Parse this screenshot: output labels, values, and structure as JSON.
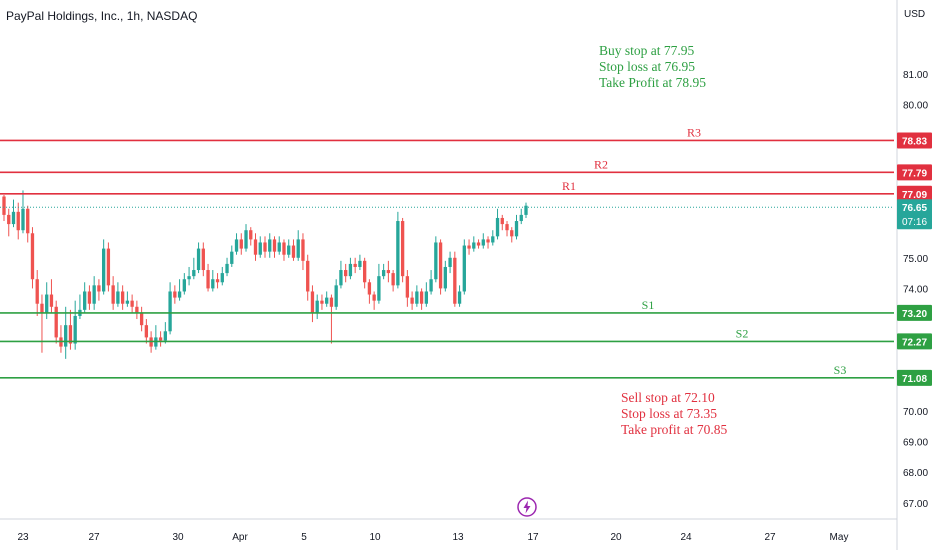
{
  "header": {
    "title": "PayPal Holdings, Inc., 1h, NASDAQ",
    "currency": "USD"
  },
  "colors": {
    "up": "#26a69a",
    "down": "#ef5350",
    "resistance": "#e1303f",
    "support": "#2ea043",
    "buy_note": "#2ea043",
    "sell_note": "#e1303f",
    "price_label": "#26a69a",
    "lightning": "#9c27b0"
  },
  "notes": {
    "buy": [
      "Buy stop at 77.95",
      "Stop loss at 76.95",
      "Take Profit at 78.95"
    ],
    "sell": [
      "Sell stop at 72.10",
      "Stop loss at 73.35",
      "Take profit at 70.85"
    ]
  },
  "lightning_icon": "lightning-bolt-icon",
  "chart_data": {
    "type": "candlestick",
    "title": "PayPal Holdings, Inc., 1h, NASDAQ",
    "y_ticks": [
      67.0,
      68.0,
      69.0,
      70.0,
      71.0,
      72.0,
      73.0,
      74.0,
      75.0,
      76.0,
      77.0,
      78.0,
      79.0,
      80.0,
      81.0
    ],
    "y_tick_labels": [
      "67.00",
      "68.00",
      "69.00",
      "70.00",
      "",
      "",
      "",
      "74.00",
      "75.00",
      "",
      "",
      "",
      "",
      "80.00",
      "81.00"
    ],
    "ylim": [
      66.7,
      82.6
    ],
    "x_ticks": [
      "23",
      "27",
      "30",
      "Apr",
      "5",
      "10",
      "13",
      "17",
      "20",
      "24",
      "27",
      "May"
    ],
    "levels": [
      {
        "label": "R3",
        "value": 78.83,
        "kind": "resistance",
        "tag": "78.83"
      },
      {
        "label": "R2",
        "value": 77.79,
        "kind": "resistance",
        "tag": "77.79"
      },
      {
        "label": "R1",
        "value": 77.09,
        "kind": "resistance",
        "tag": "77.09"
      },
      {
        "label": "S1",
        "value": 73.2,
        "kind": "support",
        "tag": "73.20"
      },
      {
        "label": "S2",
        "value": 72.27,
        "kind": "support",
        "tag": "72.27"
      },
      {
        "label": "S3",
        "value": 71.08,
        "kind": "support",
        "tag": "71.08"
      }
    ],
    "last_price": {
      "value": 76.65,
      "tag": "76.65",
      "countdown": "07:16"
    },
    "candles": [
      [
        77.0,
        76.4,
        77.05,
        76.2
      ],
      [
        76.4,
        76.1,
        76.6,
        75.7
      ],
      [
        76.1,
        76.5,
        76.9,
        76.0
      ],
      [
        76.5,
        75.9,
        76.8,
        75.6
      ],
      [
        75.9,
        76.6,
        77.2,
        75.8
      ],
      [
        76.6,
        75.8,
        76.7,
        75.5
      ],
      [
        75.8,
        74.3,
        76.0,
        74.0
      ],
      [
        74.3,
        73.5,
        74.6,
        73.1
      ],
      [
        73.5,
        73.2,
        73.8,
        71.9
      ],
      [
        73.2,
        73.8,
        74.2,
        73.0
      ],
      [
        73.8,
        73.4,
        74.3,
        73.2
      ],
      [
        73.4,
        72.4,
        73.6,
        72.2
      ],
      [
        72.4,
        72.1,
        72.8,
        71.9
      ],
      [
        72.1,
        72.8,
        73.4,
        71.7
      ],
      [
        72.8,
        72.2,
        73.3,
        72.0
      ],
      [
        72.2,
        73.1,
        73.6,
        72.0
      ],
      [
        73.1,
        73.3,
        73.8,
        73.0
      ],
      [
        73.3,
        73.9,
        74.2,
        73.2
      ],
      [
        73.9,
        73.5,
        74.1,
        73.3
      ],
      [
        73.5,
        74.1,
        74.4,
        73.3
      ],
      [
        74.1,
        73.9,
        74.3,
        73.6
      ],
      [
        73.9,
        75.3,
        75.6,
        73.8
      ],
      [
        75.3,
        74.1,
        75.5,
        73.9
      ],
      [
        74.1,
        73.5,
        74.4,
        73.3
      ],
      [
        73.5,
        73.9,
        74.2,
        73.4
      ],
      [
        73.9,
        73.5,
        74.1,
        73.3
      ],
      [
        73.5,
        73.6,
        73.9,
        73.4
      ],
      [
        73.6,
        73.4,
        73.8,
        73.2
      ],
      [
        73.4,
        73.2,
        73.6,
        73.0
      ],
      [
        73.2,
        72.8,
        73.4,
        72.6
      ],
      [
        72.8,
        72.4,
        73.0,
        72.2
      ],
      [
        72.4,
        72.1,
        72.6,
        71.9
      ],
      [
        72.1,
        72.4,
        72.8,
        72.0
      ],
      [
        72.4,
        72.3,
        72.6,
        72.1
      ],
      [
        72.3,
        72.6,
        72.9,
        72.2
      ],
      [
        72.6,
        73.9,
        74.2,
        72.5
      ],
      [
        73.9,
        73.7,
        74.1,
        73.5
      ],
      [
        73.7,
        73.9,
        74.3,
        73.6
      ],
      [
        73.9,
        74.3,
        74.5,
        73.8
      ],
      [
        74.3,
        74.4,
        74.7,
        74.1
      ],
      [
        74.4,
        74.6,
        75.0,
        74.3
      ],
      [
        74.6,
        75.3,
        75.5,
        74.5
      ],
      [
        75.3,
        74.6,
        75.5,
        74.4
      ],
      [
        74.6,
        74.0,
        74.8,
        73.9
      ],
      [
        74.0,
        74.3,
        74.6,
        73.9
      ],
      [
        74.3,
        74.2,
        74.5,
        74.0
      ],
      [
        74.2,
        74.5,
        74.7,
        74.1
      ],
      [
        74.5,
        74.8,
        75.0,
        74.4
      ],
      [
        74.8,
        75.2,
        75.4,
        74.7
      ],
      [
        75.2,
        75.6,
        75.8,
        75.1
      ],
      [
        75.6,
        75.3,
        75.8,
        75.1
      ],
      [
        75.3,
        75.9,
        76.1,
        75.2
      ],
      [
        75.9,
        75.6,
        76.0,
        75.4
      ],
      [
        75.6,
        75.1,
        75.8,
        74.9
      ],
      [
        75.1,
        75.5,
        75.7,
        75.0
      ],
      [
        75.5,
        75.2,
        75.7,
        75.0
      ],
      [
        75.2,
        75.6,
        75.8,
        75.0
      ],
      [
        75.6,
        75.2,
        75.7,
        75.0
      ],
      [
        75.2,
        75.5,
        75.7,
        75.1
      ],
      [
        75.5,
        75.1,
        75.6,
        74.9
      ],
      [
        75.1,
        75.4,
        75.6,
        75.0
      ],
      [
        75.4,
        75.0,
        75.6,
        74.9
      ],
      [
        75.0,
        75.6,
        75.9,
        74.9
      ],
      [
        75.6,
        74.9,
        75.8,
        74.6
      ],
      [
        74.9,
        73.9,
        75.1,
        73.6
      ],
      [
        73.9,
        73.2,
        74.1,
        72.9
      ],
      [
        73.2,
        73.6,
        73.8,
        73.0
      ],
      [
        73.6,
        73.5,
        73.8,
        73.3
      ],
      [
        73.5,
        73.7,
        73.9,
        73.4
      ],
      [
        73.7,
        73.4,
        73.8,
        72.2
      ],
      [
        73.4,
        74.1,
        74.3,
        73.3
      ],
      [
        74.1,
        74.6,
        74.9,
        74.0
      ],
      [
        74.6,
        74.4,
        74.8,
        74.2
      ],
      [
        74.4,
        74.8,
        75.0,
        74.3
      ],
      [
        74.8,
        74.7,
        75.0,
        74.5
      ],
      [
        74.7,
        74.9,
        75.1,
        74.6
      ],
      [
        74.9,
        74.2,
        75.0,
        74.0
      ],
      [
        74.2,
        73.8,
        74.3,
        73.5
      ],
      [
        73.8,
        73.6,
        73.9,
        73.3
      ],
      [
        73.6,
        74.4,
        74.8,
        73.5
      ],
      [
        74.4,
        74.6,
        74.8,
        74.3
      ],
      [
        74.6,
        74.5,
        74.9,
        74.2
      ],
      [
        74.5,
        74.1,
        74.6,
        73.9
      ],
      [
        74.1,
        76.2,
        76.5,
        74.0
      ],
      [
        76.2,
        74.4,
        76.3,
        74.2
      ],
      [
        74.4,
        73.7,
        74.6,
        73.4
      ],
      [
        73.7,
        73.5,
        73.9,
        73.3
      ],
      [
        73.5,
        73.9,
        74.1,
        73.4
      ],
      [
        73.9,
        73.5,
        74.0,
        73.3
      ],
      [
        73.5,
        73.9,
        74.2,
        73.4
      ],
      [
        73.9,
        74.3,
        74.6,
        73.8
      ],
      [
        74.3,
        75.5,
        75.7,
        74.2
      ],
      [
        75.5,
        74.0,
        75.6,
        73.8
      ],
      [
        74.0,
        74.7,
        74.9,
        73.9
      ],
      [
        74.7,
        75.0,
        75.2,
        74.5
      ],
      [
        75.0,
        73.5,
        75.2,
        73.4
      ],
      [
        73.5,
        73.9,
        74.1,
        73.4
      ],
      [
        73.9,
        75.4,
        75.6,
        73.8
      ],
      [
        75.4,
        75.3,
        75.6,
        75.1
      ],
      [
        75.3,
        75.5,
        75.7,
        75.2
      ],
      [
        75.5,
        75.4,
        75.6,
        75.3
      ],
      [
        75.4,
        75.6,
        75.8,
        75.3
      ],
      [
        75.6,
        75.5,
        75.7,
        75.3
      ],
      [
        75.5,
        75.7,
        75.9,
        75.4
      ],
      [
        75.7,
        76.3,
        76.6,
        75.6
      ],
      [
        76.3,
        76.1,
        76.4,
        75.9
      ],
      [
        76.1,
        75.9,
        76.2,
        75.7
      ],
      [
        75.9,
        75.7,
        76.0,
        75.5
      ],
      [
        75.7,
        76.2,
        76.4,
        75.6
      ],
      [
        76.2,
        76.4,
        76.6,
        76.1
      ],
      [
        76.4,
        76.7,
        76.8,
        76.3
      ]
    ]
  }
}
